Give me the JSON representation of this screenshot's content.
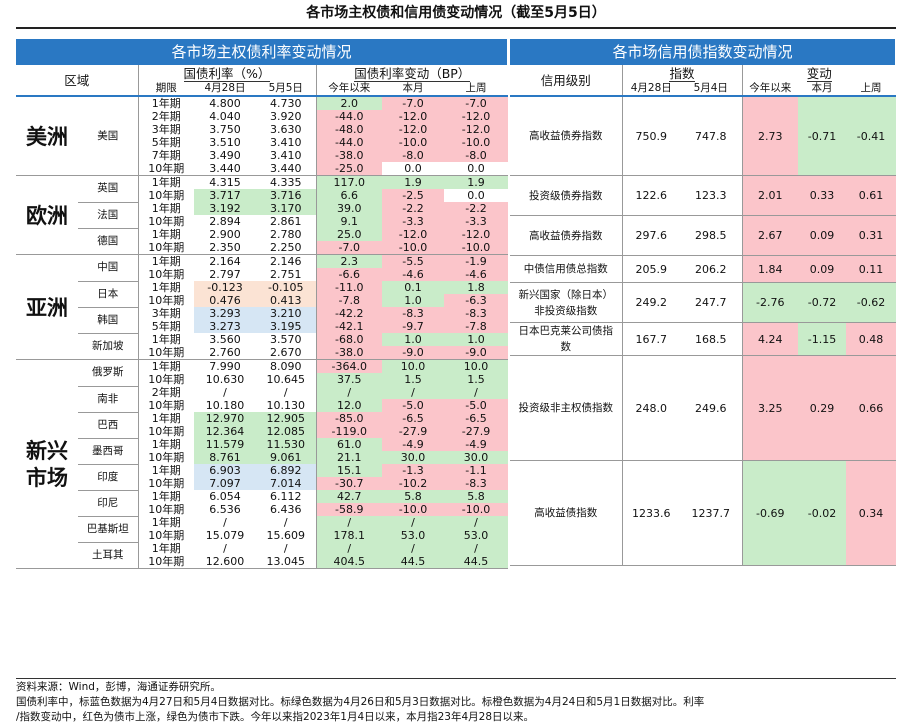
{
  "title": "各市场主权债和信用债变动情况（截至5月5日）",
  "left": {
    "banner": "各市场主权债利率变动情况",
    "region_header": "区域",
    "rate_header": "国债利率（%）",
    "change_header": "国债利率变动（BP）",
    "cols": [
      "期限",
      "4月28日",
      "5月5日",
      "今年以来",
      "本月",
      "上周"
    ]
  },
  "right": {
    "banner": "各市场信用债指数变动情况",
    "rating_header": "信用级别",
    "index_header": "指数",
    "change_header": "变动",
    "cols": [
      "4月28日",
      "5月4日",
      "今年以来",
      "本月",
      "上周"
    ]
  },
  "colors": {
    "red": "#fbc5ca",
    "green": "#c9ecc9",
    "blue": "#d6e6f4",
    "orange": "#fbe3d4",
    "grey": "#ececec",
    "banner": "#2a78c3"
  },
  "regions": [
    {
      "name": "美洲",
      "countries": [
        {
          "name": "美国",
          "rows": [
            [
              "1年期",
              "4.800",
              "4.730",
              "2.0",
              "-7.0",
              "-7.0"
            ],
            [
              "2年期",
              "4.040",
              "3.920",
              "-44.0",
              "-12.0",
              "-12.0"
            ],
            [
              "3年期",
              "3.750",
              "3.630",
              "-48.0",
              "-12.0",
              "-12.0"
            ],
            [
              "5年期",
              "3.510",
              "3.410",
              "-44.0",
              "-10.0",
              "-10.0"
            ],
            [
              "7年期",
              "3.490",
              "3.410",
              "-38.0",
              "-8.0",
              "-8.0"
            ],
            [
              "10年期",
              "3.440",
              "3.440",
              "-25.0",
              "0.0",
              "0.0"
            ]
          ]
        }
      ]
    },
    {
      "name": "欧洲",
      "countries": [
        {
          "name": "英国",
          "rows": [
            [
              "1年期",
              "4.315",
              "4.335",
              "117.0",
              "1.9",
              "1.9"
            ],
            [
              "10年期",
              "3.717",
              "3.716",
              "6.6",
              "-2.5",
              "0.0"
            ]
          ]
        },
        {
          "name": "法国",
          "rows": [
            [
              "1年期",
              "3.192",
              "3.170",
              "39.0",
              "-2.2",
              "-2.2"
            ],
            [
              "10年期",
              "2.894",
              "2.861",
              "9.1",
              "-3.3",
              "-3.3"
            ]
          ]
        },
        {
          "name": "德国",
          "rows": [
            [
              "1年期",
              "2.900",
              "2.780",
              "25.0",
              "-12.0",
              "-12.0"
            ],
            [
              "10年期",
              "2.350",
              "2.250",
              "-7.0",
              "-10.0",
              "-10.0"
            ]
          ]
        }
      ]
    },
    {
      "name": "亚洲",
      "countries": [
        {
          "name": "中国",
          "rows": [
            [
              "1年期",
              "2.164",
              "2.146",
              "2.3",
              "-5.5",
              "-1.9"
            ],
            [
              "10年期",
              "2.797",
              "2.751",
              "-6.6",
              "-4.6",
              "-4.6"
            ]
          ]
        },
        {
          "name": "日本",
          "rows": [
            [
              "1年期",
              "-0.123",
              "-0.105",
              "-11.0",
              "0.1",
              "1.8"
            ],
            [
              "10年期",
              "0.476",
              "0.413",
              "-7.8",
              "1.0",
              "-6.3"
            ]
          ]
        },
        {
          "name": "韩国",
          "rows": [
            [
              "3年期",
              "3.293",
              "3.210",
              "-42.2",
              "-8.3",
              "-8.3"
            ],
            [
              "5年期",
              "3.273",
              "3.195",
              "-42.1",
              "-9.7",
              "-7.8"
            ]
          ]
        },
        {
          "name": "新加坡",
          "rows": [
            [
              "1年期",
              "3.560",
              "3.570",
              "-68.0",
              "1.0",
              "1.0"
            ],
            [
              "10年期",
              "2.760",
              "2.670",
              "-38.0",
              "-9.0",
              "-9.0"
            ]
          ]
        }
      ]
    },
    {
      "name": "新兴市场",
      "countries": [
        {
          "name": "俄罗斯",
          "rows": [
            [
              "1年期",
              "7.990",
              "8.090",
              "-364.0",
              "10.0",
              "10.0"
            ],
            [
              "10年期",
              "10.630",
              "10.645",
              "37.5",
              "1.5",
              "1.5"
            ]
          ]
        },
        {
          "name": "南非",
          "rows": [
            [
              "2年期",
              "/",
              "/",
              "/",
              "/",
              "/"
            ],
            [
              "10年期",
              "10.180",
              "10.130",
              "12.0",
              "-5.0",
              "-5.0"
            ]
          ]
        },
        {
          "name": "巴西",
          "rows": [
            [
              "1年期",
              "12.970",
              "12.905",
              "-85.0",
              "-6.5",
              "-6.5"
            ],
            [
              "10年期",
              "12.364",
              "12.085",
              "-119.0",
              "-27.9",
              "-27.9"
            ]
          ]
        },
        {
          "name": "墨西哥",
          "rows": [
            [
              "1年期",
              "11.579",
              "11.530",
              "61.0",
              "-4.9",
              "-4.9"
            ],
            [
              "10年期",
              "8.761",
              "9.061",
              "21.1",
              "30.0",
              "30.0"
            ]
          ]
        },
        {
          "name": "印度",
          "rows": [
            [
              "1年期",
              "6.903",
              "6.892",
              "15.1",
              "-1.3",
              "-1.1"
            ],
            [
              "10年期",
              "7.097",
              "7.014",
              "-30.7",
              "-10.2",
              "-8.3"
            ]
          ]
        },
        {
          "name": "印尼",
          "rows": [
            [
              "1年期",
              "6.054",
              "6.112",
              "42.7",
              "5.8",
              "5.8"
            ],
            [
              "10年期",
              "6.536",
              "6.436",
              "-58.9",
              "-10.0",
              "-10.0"
            ]
          ]
        },
        {
          "name": "巴基斯坦",
          "rows": [
            [
              "1年期",
              "/",
              "/",
              "/",
              "/",
              "/"
            ],
            [
              "10年期",
              "15.079",
              "15.609",
              "178.1",
              "53.0",
              "53.0"
            ]
          ]
        },
        {
          "name": "土耳其",
          "rows": [
            [
              "1年期",
              "/",
              "/",
              "/",
              "/",
              "/"
            ],
            [
              "10年期",
              "12.600",
              "13.045",
              "404.5",
              "44.5",
              "44.5"
            ]
          ]
        }
      ]
    }
  ],
  "credit": [
    {
      "name": "高收益债券指数",
      "values": [
        "750.9",
        "747.8",
        "2.73",
        "-0.71",
        "-0.41"
      ]
    },
    {
      "name": "投资级债券指数",
      "values": [
        "122.6",
        "123.3",
        "2.01",
        "0.33",
        "0.61"
      ]
    },
    {
      "name": "高收益债券指数",
      "values": [
        "297.6",
        "298.5",
        "2.67",
        "0.09",
        "0.31"
      ]
    },
    {
      "name": "中债信用债总指数",
      "values": [
        "205.9",
        "206.2",
        "1.84",
        "0.09",
        "0.11"
      ]
    },
    {
      "name": "新兴国家（除日本）非投资级指数",
      "values": [
        "249.2",
        "247.7",
        "-2.76",
        "-0.72",
        "-0.62"
      ]
    },
    {
      "name": "日本巴克莱公司债指数",
      "values": [
        "167.7",
        "168.5",
        "4.24",
        "-1.15",
        "0.48"
      ]
    },
    {
      "name": "投资级非主权债指数",
      "values": [
        "248.0",
        "249.6",
        "3.25",
        "0.29",
        "0.66"
      ]
    },
    {
      "name": "高收益债指数",
      "values": [
        "1233.6",
        "1237.7",
        "-0.69",
        "-0.02",
        "0.34"
      ]
    }
  ],
  "source": "资料来源：Wind，彭博，海通证券研究所。",
  "note1": "国债利率中，标蓝色数据为4月27日和5月4日数据对比。标绿色数据为4月26日和5月3日数据对比。标橙色数据为4月24日和5月1日数据对比。利率",
  "note2": "/指数变动中，红色为债市上涨，绿色为债市下跌。今年以来指2023年1月4日以来，本月指23年4月28日以来。"
}
